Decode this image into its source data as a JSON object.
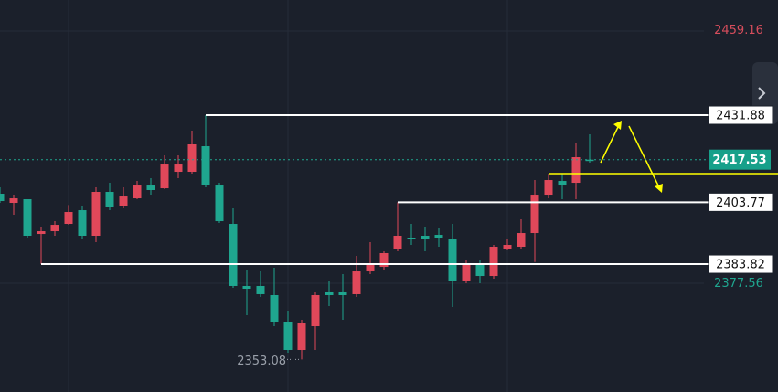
{
  "chart_data": {
    "type": "candlestick",
    "open": [
      2406.53,
      2403.58,
      2404.76,
      2393.55,
      2394.44,
      2396.8,
      2401.22,
      2392.97,
      2407.12,
      2402.7,
      2405.05,
      2409.18,
      2408.29,
      2413.6,
      2413.6,
      2421.86,
      2409.18,
      2396.8,
      2376.76,
      2376.76,
      2373.81,
      2365.26,
      2356.12,
      2363.78,
      2374.7,
      2374.7,
      2374.11,
      2381.47,
      2382.94,
      2388.84,
      2392.38,
      2392.97,
      2393.26,
      2391.79,
      2378.52,
      2384.12,
      2379.99,
      2388.84,
      2389.43,
      2393.85,
      2406.23,
      2410.65,
      2410.06,
      2417.53
    ],
    "high": [
      2408.59,
      2406.23,
      2404.76,
      2395.91,
      2397.68,
      2402.9,
      2402.7,
      2408.59,
      2410.06,
      2408.59,
      2410.65,
      2411.54,
      2418.91,
      2418.91,
      2426.87,
      2431.88,
      2410.06,
      2401.81,
      2382.05,
      2381.47,
      2382.65,
      2368.79,
      2365.85,
      2374.7,
      2378.52,
      2380.58,
      2386.48,
      2390.9,
      2387.95,
      2403.77,
      2396.8,
      2395.91,
      2395.32,
      2396.8,
      2385.01,
      2385.01,
      2390.02,
      2391.79,
      2398.27,
      2410.95,
      2413.01,
      2413.01,
      2422.74,
      2425.69
    ],
    "low": [
      2403.58,
      2399.75,
      2392.38,
      2383.82,
      2392.97,
      2396.5,
      2391.79,
      2390.9,
      2401.22,
      2401.81,
      2404.76,
      2406.23,
      2408.0,
      2411.54,
      2413.01,
      2408.59,
      2397.09,
      2376.17,
      2367.32,
      2373.22,
      2363.78,
      2355.23,
      2353.08,
      2356.12,
      2370.27,
      2365.85,
      2373.22,
      2380.58,
      2382.05,
      2387.95,
      2390.02,
      2387.95,
      2389.43,
      2369.97,
      2377.64,
      2377.64,
      2379.11,
      2388.25,
      2388.84,
      2384.5,
      2405.05,
      2404.76,
      2404.76,
      2416.55
    ],
    "close": [
      2404.17,
      2405.05,
      2392.97,
      2394.44,
      2396.5,
      2400.63,
      2392.97,
      2407.12,
      2402.11,
      2405.64,
      2409.18,
      2407.71,
      2415.96,
      2415.96,
      2422.45,
      2409.47,
      2397.68,
      2376.76,
      2375.87,
      2374.11,
      2365.26,
      2356.12,
      2364.96,
      2373.81,
      2373.81,
      2373.81,
      2381.47,
      2383.53,
      2387.37,
      2392.97,
      2391.79,
      2391.79,
      2392.38,
      2378.52,
      2384.12,
      2379.99,
      2389.43,
      2390.02,
      2393.85,
      2406.23,
      2410.95,
      2409.18,
      2418.32,
      2417.53
    ],
    "up_color": "#e0485a",
    "down_color": "#1fa68f",
    "ylim": [
      2342.56,
      2469.03
    ],
    "levels": [
      2431.88,
      2403.77,
      2383.82
    ],
    "last_price": 2417.53,
    "price_marks": [
      {
        "value": 2459.16,
        "color": "#d64d5c"
      },
      {
        "value": 2377.56,
        "color": "#1fa68f"
      }
    ],
    "low_label": 2353.08
  }
}
